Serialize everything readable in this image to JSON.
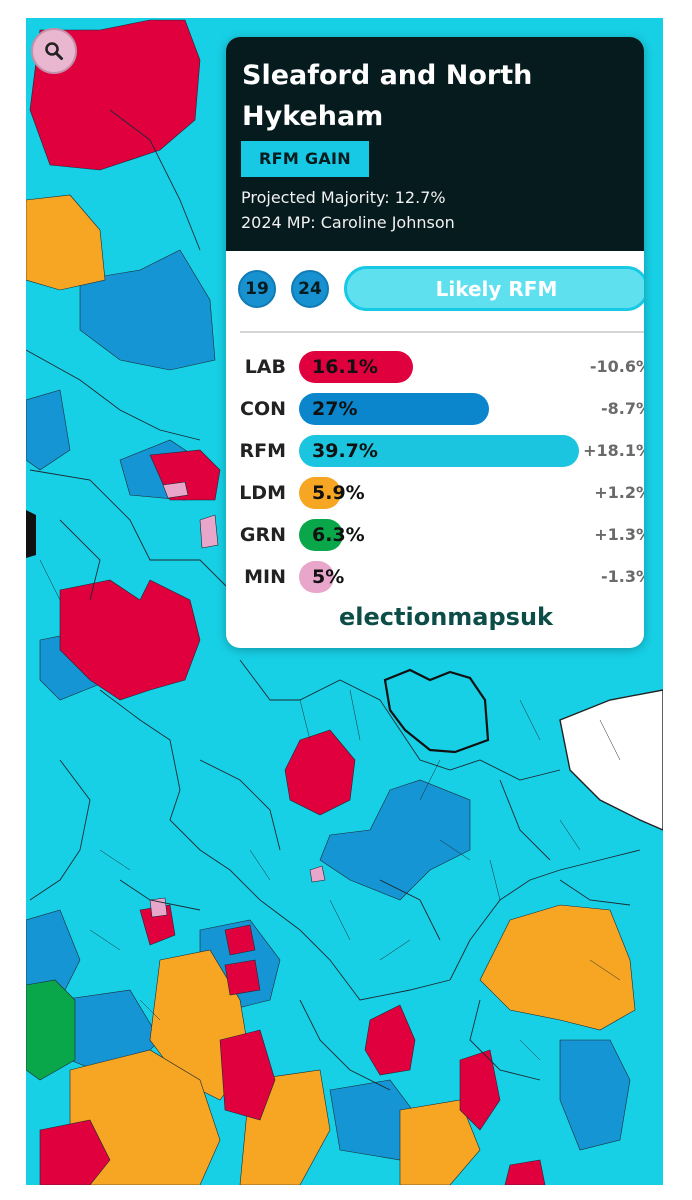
{
  "search": {
    "icon": "magnifier"
  },
  "constituency": {
    "name_line1": "Sleaford and North",
    "name_line2": "Hykeham",
    "result_badge": "RFM GAIN",
    "majority": "Projected Majority: 12.7%",
    "mp": "2024 MP: Caroline Johnson"
  },
  "years": [
    "19",
    "24"
  ],
  "rating": "Likely RFM",
  "colors": {
    "LAB": "#e0003e",
    "CON": "#0b86cd",
    "RFM": "#1cc5df",
    "LDM": "#f7a623",
    "GRN": "#0aa74a",
    "MIN": "#e8a6cb",
    "map_base": "#17d0e6",
    "popup_header": "#061b1e"
  },
  "results": [
    {
      "party": "LAB",
      "share": "16.1%",
      "value": 16.1,
      "change": "-10.6%"
    },
    {
      "party": "CON",
      "share": "27%",
      "value": 27,
      "change": "-8.7%"
    },
    {
      "party": "RFM",
      "share": "39.7%",
      "value": 39.7,
      "change": "+18.1%"
    },
    {
      "party": "LDM",
      "share": "5.9%",
      "value": 5.9,
      "change": "+1.2%"
    },
    {
      "party": "GRN",
      "share": "6.3%",
      "value": 6.3,
      "change": "+1.3%"
    },
    {
      "party": "MIN",
      "share": "5%",
      "value": 5,
      "change": "-1.3%"
    }
  ],
  "brand": "electionmapsuk"
}
